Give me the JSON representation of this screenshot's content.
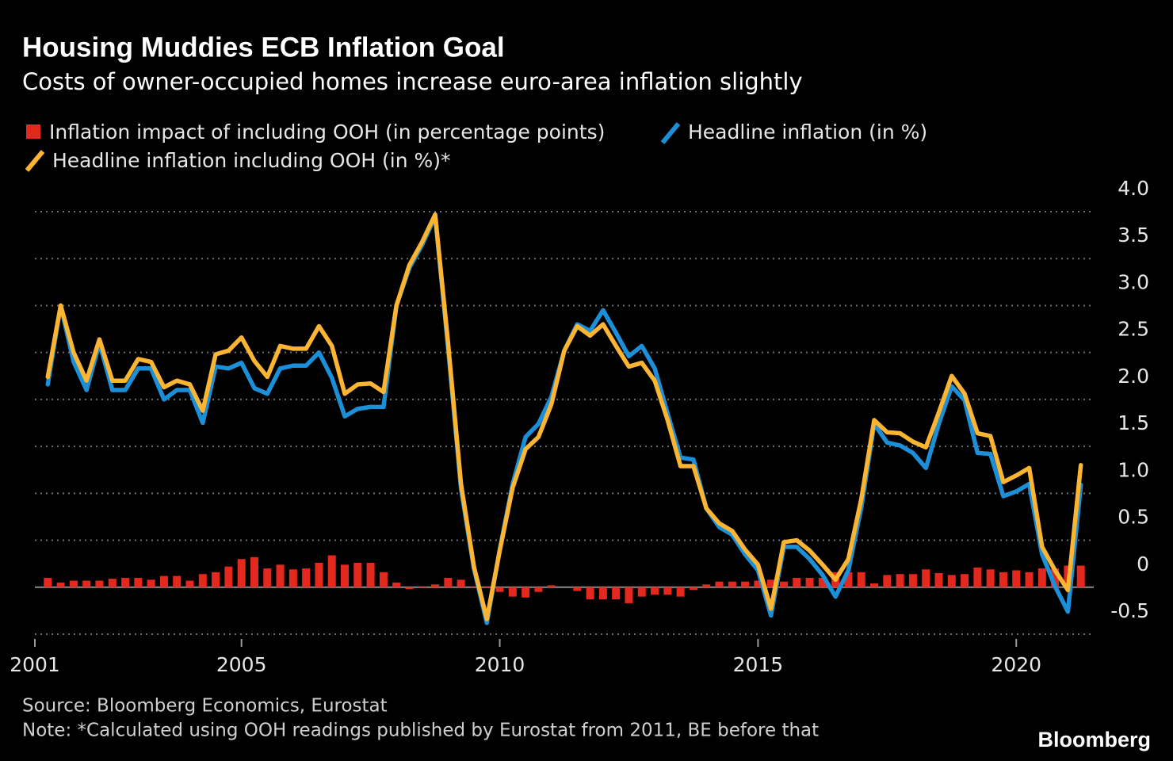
{
  "chart_data": {
    "type": "combo",
    "title": "Housing Muddies ECB Inflation Goal",
    "subtitle": "Costs of owner-occupied homes increase euro-area inflation slightly",
    "source": "Source: Bloomberg Economics, Eurostat",
    "note": "Note: *Calculated using OOH readings published by Eurostat from 2011, BE before that",
    "brand": "Bloomberg",
    "xlim": [
      2001,
      2021.5
    ],
    "xticks": [
      2001,
      2005,
      2010,
      2015,
      2020
    ],
    "ylim": [
      -0.5,
      4.0
    ],
    "yticks": [
      -0.5,
      0,
      0.5,
      {
        "value": 1.0,
        "label": "1.0"
      },
      1.5,
      {
        "value": 2.0,
        "label": "2.0"
      },
      2.5,
      {
        "value": 3.0,
        "label": "3.0"
      },
      3.5,
      {
        "value": 4.0,
        "label": "4.0"
      }
    ],
    "grid": true,
    "x": [
      2001.25,
      2001.5,
      2001.75,
      2002,
      2002.25,
      2002.5,
      2002.75,
      2003,
      2003.25,
      2003.5,
      2003.75,
      2004,
      2004.25,
      2004.5,
      2004.75,
      2005,
      2005.25,
      2005.5,
      2005.75,
      2006,
      2006.25,
      2006.5,
      2006.75,
      2007,
      2007.25,
      2007.5,
      2007.75,
      2008,
      2008.25,
      2008.5,
      2008.75,
      2009,
      2009.25,
      2009.5,
      2009.75,
      2010,
      2010.25,
      2010.5,
      2010.75,
      2011,
      2011.25,
      2011.5,
      2011.75,
      2012,
      2012.25,
      2012.5,
      2012.75,
      2013,
      2013.25,
      2013.5,
      2013.75,
      2014,
      2014.25,
      2014.5,
      2014.75,
      2015,
      2015.25,
      2015.5,
      2015.75,
      2016,
      2016.25,
      2016.5,
      2016.75,
      2017,
      2017.25,
      2017.5,
      2017.75,
      2018,
      2018.25,
      2018.5,
      2018.75,
      2019,
      2019.25,
      2019.5,
      2019.75,
      2020,
      2020.25,
      2020.5,
      2020.75,
      2021,
      2021.25
    ],
    "series": [
      {
        "name": "Inflation impact of including OOH (in percentage points)",
        "type": "bar",
        "color": "#e3281e",
        "values": [
          0.1,
          0.05,
          0.07,
          0.07,
          0.07,
          0.09,
          0.1,
          0.1,
          0.08,
          0.12,
          0.12,
          0.07,
          0.14,
          0.16,
          0.22,
          0.3,
          0.32,
          0.2,
          0.24,
          0.19,
          0.2,
          0.26,
          0.34,
          0.24,
          0.26,
          0.26,
          0.16,
          0.05,
          -0.02,
          0.01,
          0.03,
          0.1,
          0.08,
          0.01,
          0.01,
          -0.05,
          -0.1,
          -0.11,
          -0.05,
          0.02,
          0,
          -0.04,
          -0.13,
          -0.13,
          -0.13,
          -0.17,
          -0.1,
          -0.08,
          -0.08,
          -0.1,
          -0.03,
          0.03,
          0.06,
          0.06,
          0.06,
          0.07,
          0.08,
          0.06,
          0.1,
          0.1,
          0.1,
          0.16,
          0.16,
          0.16,
          0.04,
          0.13,
          0.14,
          0.14,
          0.19,
          0.15,
          0.13,
          0.14,
          0.21,
          0.19,
          0.16,
          0.18,
          0.16,
          0.2,
          0.2,
          0.23,
          0.23
        ]
      },
      {
        "name": "Headline inflation (in %)",
        "type": "line",
        "color": "#1b8fd8",
        "values": [
          2.16,
          3.0,
          2.4,
          2.1,
          2.6,
          2.1,
          2.1,
          2.33,
          2.33,
          2.0,
          2.1,
          2.1,
          1.75,
          2.35,
          2.33,
          2.39,
          2.12,
          2.06,
          2.33,
          2.36,
          2.36,
          2.5,
          2.23,
          1.82,
          1.9,
          1.92,
          1.92,
          3.0,
          3.4,
          3.65,
          3.95,
          2.55,
          1.05,
          0.2,
          -0.38,
          0.4,
          1.1,
          1.6,
          1.74,
          2.03,
          2.52,
          2.8,
          2.73,
          2.95,
          2.71,
          2.46,
          2.57,
          2.33,
          1.85,
          1.38,
          1.36,
          0.84,
          0.64,
          0.56,
          0.35,
          0.18,
          -0.3,
          0.43,
          0.43,
          0.3,
          0.13,
          -0.1,
          0.18,
          0.85,
          1.74,
          1.54,
          1.51,
          1.43,
          1.27,
          1.74,
          2.14,
          1.99,
          1.43,
          1.42,
          0.97,
          1.02,
          1.1,
          0.35,
          0.01,
          -0.26,
          1.09
        ]
      },
      {
        "name": "Headline inflation including OOH (in %)*",
        "type": "line",
        "color": "#fbb532",
        "values": [
          2.24,
          3.0,
          2.5,
          2.2,
          2.64,
          2.2,
          2.2,
          2.43,
          2.4,
          2.13,
          2.2,
          2.16,
          1.88,
          2.48,
          2.52,
          2.66,
          2.41,
          2.24,
          2.57,
          2.54,
          2.54,
          2.78,
          2.57,
          2.06,
          2.16,
          2.17,
          2.08,
          3.0,
          3.43,
          3.68,
          3.97,
          2.6,
          1.1,
          0.22,
          -0.34,
          0.39,
          1.06,
          1.47,
          1.6,
          1.95,
          2.52,
          2.78,
          2.68,
          2.8,
          2.57,
          2.35,
          2.39,
          2.2,
          1.78,
          1.29,
          1.29,
          0.84,
          0.68,
          0.6,
          0.4,
          0.24,
          -0.23,
          0.48,
          0.5,
          0.39,
          0.24,
          0.08,
          0.3,
          0.94,
          1.78,
          1.65,
          1.64,
          1.55,
          1.49,
          1.86,
          2.25,
          2.06,
          1.64,
          1.61,
          1.12,
          1.19,
          1.27,
          0.43,
          0.18,
          -0.03,
          1.3
        ]
      }
    ]
  }
}
